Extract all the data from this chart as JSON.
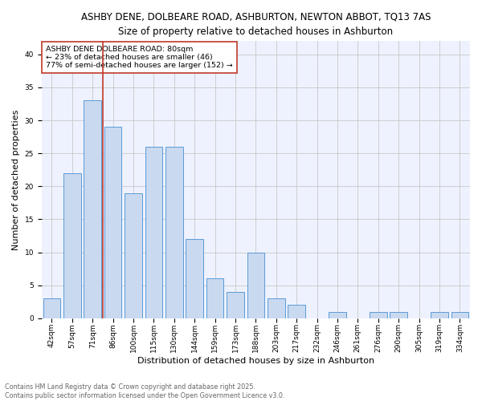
{
  "title_line1": "ASHBY DENE, DOLBEARE ROAD, ASHBURTON, NEWTON ABBOT, TQ13 7AS",
  "title_line2": "Size of property relative to detached houses in Ashburton",
  "xlabel": "Distribution of detached houses by size in Ashburton",
  "ylabel": "Number of detached properties",
  "categories": [
    "42sqm",
    "57sqm",
    "71sqm",
    "86sqm",
    "100sqm",
    "115sqm",
    "130sqm",
    "144sqm",
    "159sqm",
    "173sqm",
    "188sqm",
    "203sqm",
    "217sqm",
    "232sqm",
    "246sqm",
    "261sqm",
    "276sqm",
    "290sqm",
    "305sqm",
    "319sqm",
    "334sqm"
  ],
  "values": [
    3,
    22,
    33,
    29,
    19,
    26,
    26,
    12,
    6,
    4,
    10,
    3,
    2,
    0,
    1,
    0,
    1,
    1,
    0,
    1,
    1
  ],
  "bar_color": "#c9d9f0",
  "bar_edge_color": "#5b9bd5",
  "marker_line_color": "#c0392b",
  "annotation_text": "ASHBY DENE DOLBEARE ROAD: 80sqm\n← 23% of detached houses are smaller (46)\n77% of semi-detached houses are larger (152) →",
  "annotation_box_edge": "#c0392b",
  "ylim": [
    0,
    42
  ],
  "yticks": [
    0,
    5,
    10,
    15,
    20,
    25,
    30,
    35,
    40
  ],
  "grid_color": "#c8c8c8",
  "bg_color": "#eef2ff",
  "footer_line1": "Contains HM Land Registry data © Crown copyright and database right 2025.",
  "footer_line2": "Contains public sector information licensed under the Open Government Licence v3.0.",
  "title_fontsize": 8.5,
  "title2_fontsize": 8.5,
  "axis_label_fontsize": 8,
  "tick_fontsize": 6.5,
  "annotation_fontsize": 6.8,
  "footer_fontsize": 5.8
}
